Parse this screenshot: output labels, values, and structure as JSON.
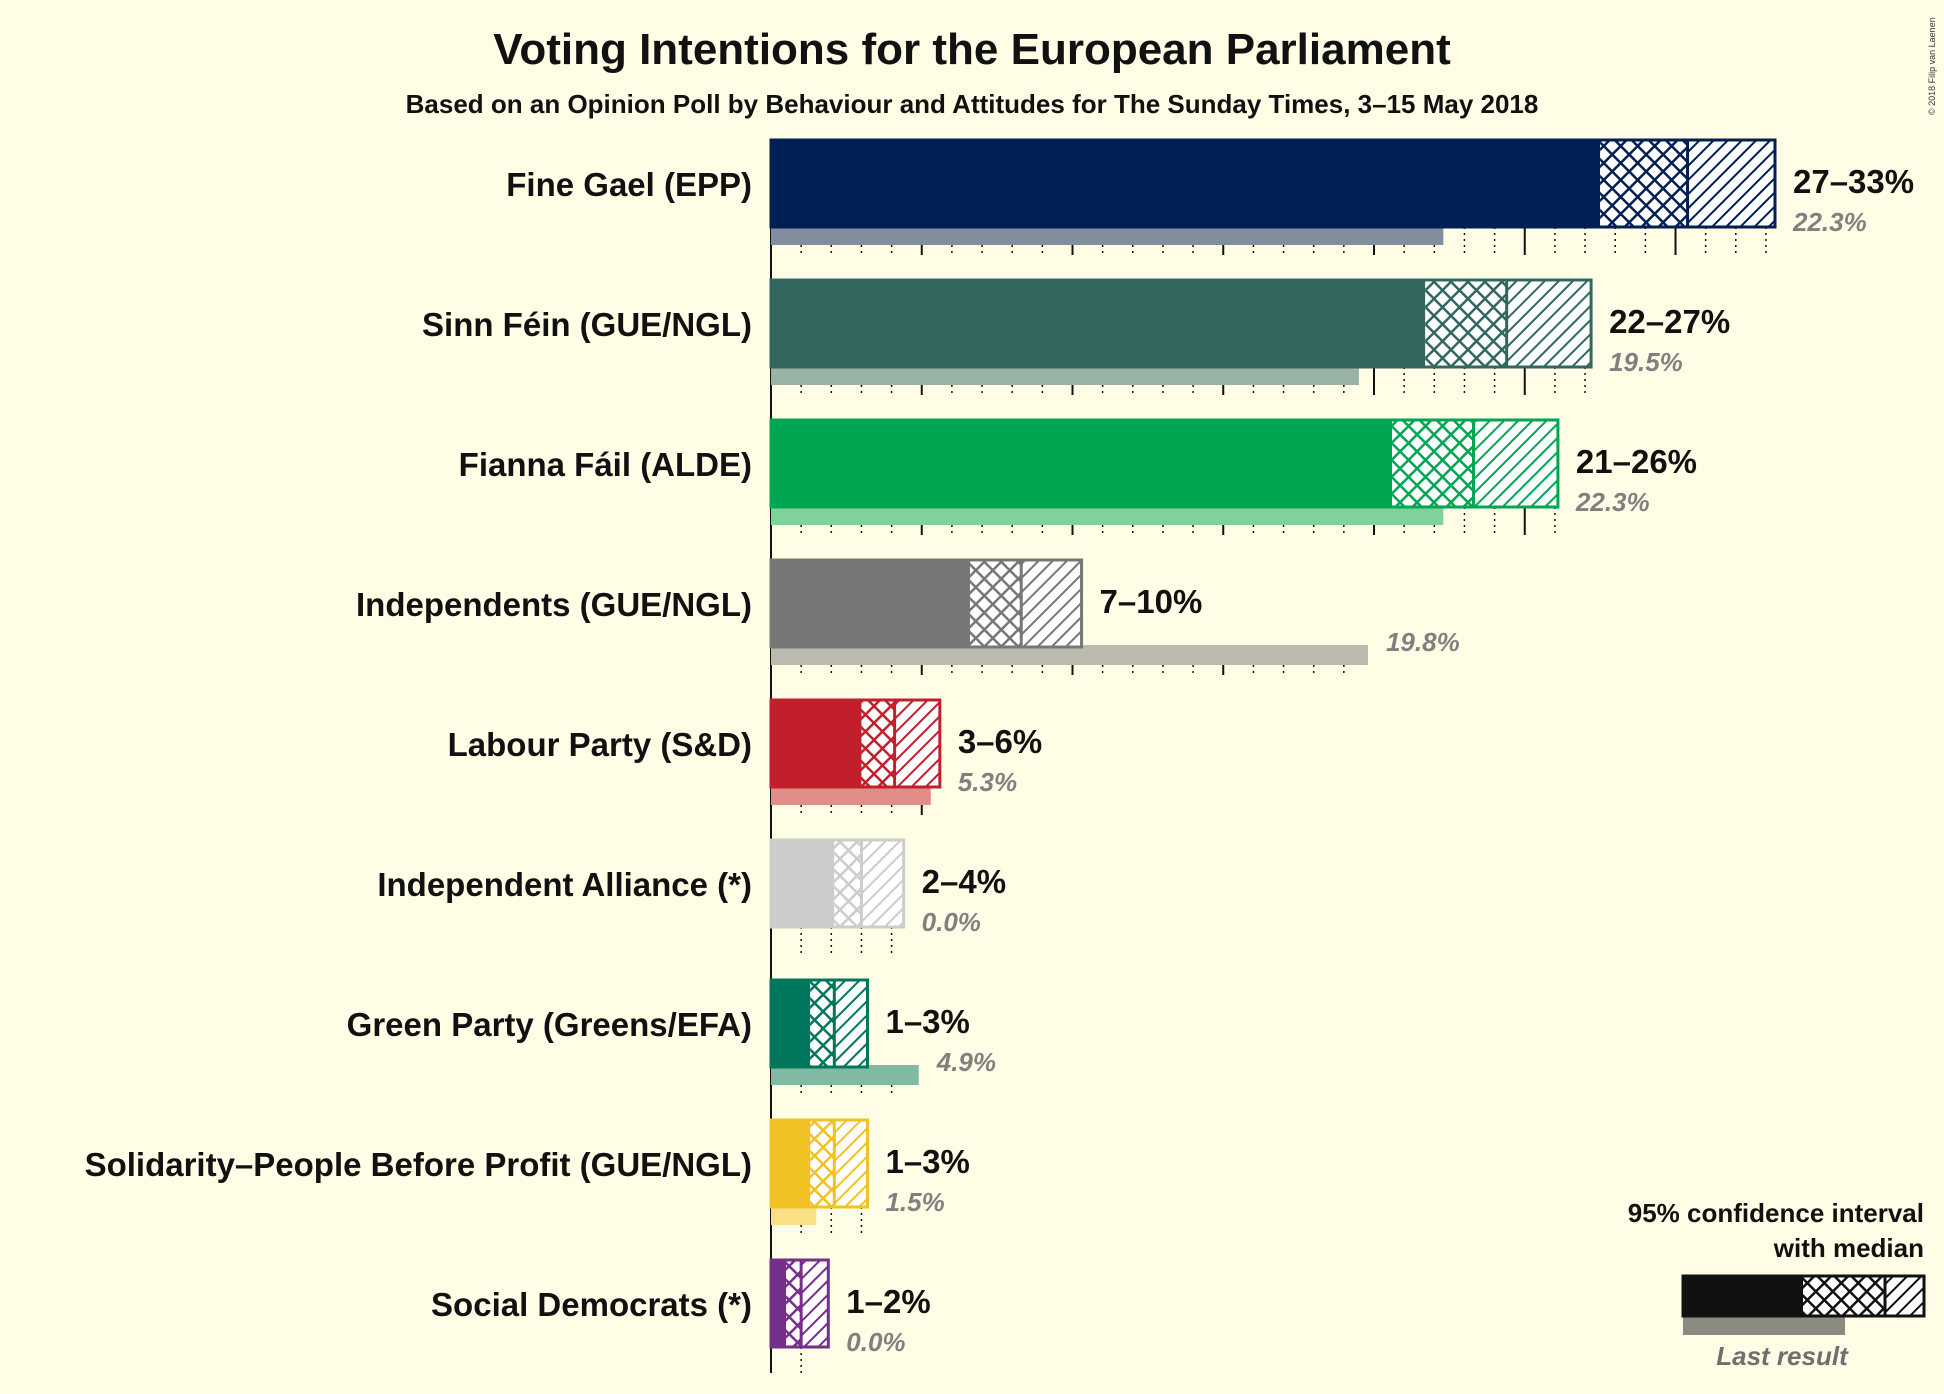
{
  "title": "Voting Intentions for the European Parliament",
  "subtitle": "Based on an Opinion Poll by Behaviour and Attitudes for The Sunday Times, 3–15 May 2018",
  "copyright": "© 2018 Filip van Laenen",
  "legend": {
    "title_line1": "95% confidence interval",
    "title_line2": "with median",
    "last_result": "Last result"
  },
  "chart_data": {
    "type": "bar",
    "orientation": "horizontal",
    "title": "Voting Intentions for the European Parliament",
    "subtitle": "Based on an Opinion Poll by Behaviour and Attitudes for The Sunday Times, 3–15 May 2018",
    "xlim": [
      0,
      33
    ],
    "series": [
      {
        "party": "Fine Gael (EPP)",
        "color": "#001f54",
        "ci_low": 27.5,
        "median": 30.4,
        "ci_high": 33.3,
        "range_label": "27–33%",
        "last": 22.3,
        "last_label": "22.3%"
      },
      {
        "party": "Sinn Féin (GUE/NGL)",
        "color": "#326760",
        "ci_low": 21.7,
        "median": 24.4,
        "ci_high": 27.2,
        "range_label": "22–27%",
        "last": 19.5,
        "last_label": "19.5%"
      },
      {
        "party": "Fianna Fáil (ALDE)",
        "color": "#00a651",
        "ci_low": 20.6,
        "median": 23.3,
        "ci_high": 26.1,
        "range_label": "21–26%",
        "last": 22.3,
        "last_label": "22.3%"
      },
      {
        "party": "Independents (GUE/NGL)",
        "color": "#777777",
        "ci_low": 6.6,
        "median": 8.3,
        "ci_high": 10.3,
        "range_label": "7–10%",
        "last": 19.8,
        "last_label": "19.8%"
      },
      {
        "party": "Labour Party (S&D)",
        "color": "#c21f2c",
        "ci_low": 3.0,
        "median": 4.1,
        "ci_high": 5.6,
        "range_label": "3–6%",
        "last": 5.3,
        "last_label": "5.3%"
      },
      {
        "party": "Independent Alliance (*)",
        "color": "#cccccc",
        "ci_low": 2.1,
        "median": 3.0,
        "ci_high": 4.4,
        "range_label": "2–4%",
        "last": 0.0,
        "last_label": "0.0%"
      },
      {
        "party": "Green Party (Greens/EFA)",
        "color": "#00775d",
        "ci_low": 1.3,
        "median": 2.1,
        "ci_high": 3.2,
        "range_label": "1–3%",
        "last": 4.9,
        "last_label": "4.9%"
      },
      {
        "party": "Solidarity–People Before Profit (GUE/NGL)",
        "color": "#f2c224",
        "ci_low": 1.3,
        "median": 2.1,
        "ci_high": 3.2,
        "range_label": "1–3%",
        "last": 1.5,
        "last_label": "1.5%"
      },
      {
        "party": "Social Democrats (*)",
        "color": "#752f8b",
        "ci_low": 0.5,
        "median": 1.0,
        "ci_high": 1.9,
        "range_label": "1–2%",
        "last": 0.0,
        "last_label": "0.0%"
      }
    ]
  }
}
